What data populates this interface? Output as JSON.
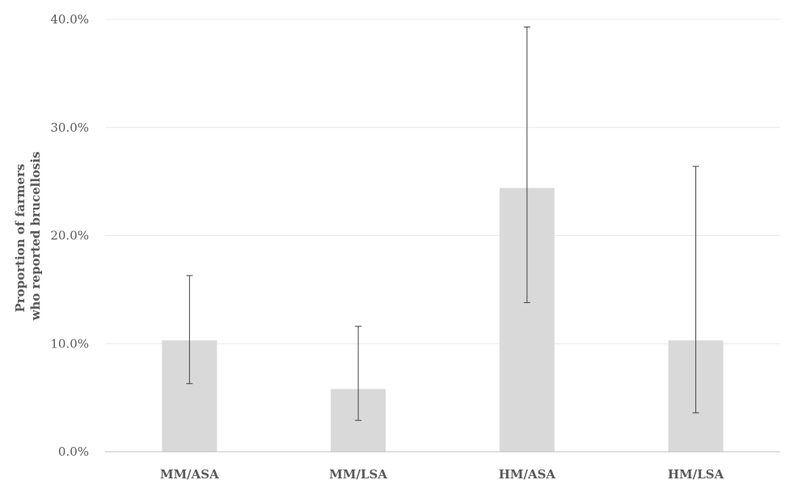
{
  "chart_data": {
    "type": "bar",
    "title": "",
    "xlabel": "",
    "ylabel_lines": [
      "Proportion of farmers",
      "who reported brucellosis"
    ],
    "categories": [
      "MM/ASA",
      "MM/LSA",
      "HM/ASA",
      "HM/LSA"
    ],
    "series": [
      {
        "values": [
          10.3,
          5.8,
          24.4,
          10.3
        ],
        "error_low": [
          6.3,
          2.9,
          13.8,
          3.6
        ],
        "error_high": [
          16.3,
          11.6,
          39.3,
          26.4
        ]
      }
    ],
    "value_format": "percent_one_decimal",
    "ylim": [
      0,
      40
    ],
    "yticks": [
      "0.0%",
      "10.0%",
      "20.0%",
      "30.0%",
      "40.0%"
    ],
    "ytick_values": [
      0,
      10,
      20,
      30,
      40
    ],
    "grid": true,
    "legend": "none",
    "colors": {
      "bar": "#d9d9d9",
      "grid": "#e8e8e8",
      "axis": "#bfbfbf",
      "error_bar": "#404040",
      "text": "#595959"
    }
  }
}
